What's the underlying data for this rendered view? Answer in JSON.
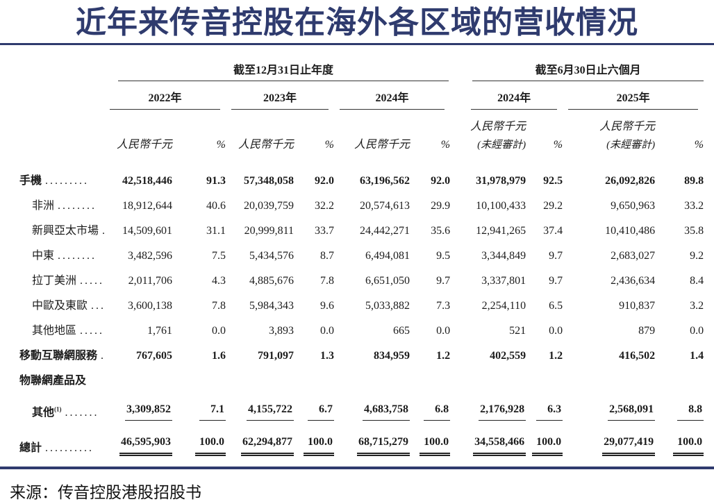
{
  "title": "近年来传音控股在海外各区域的营收情况",
  "source": "来源：传音控股港股招股书",
  "colors": {
    "accent_navy": "#2f3b6e",
    "table_rule": "#333333",
    "text": "#1c1c1c"
  },
  "table": {
    "group_headers": [
      {
        "label": "截至12月31日止年度"
      },
      {
        "label": "截至6月30日止六個月"
      }
    ],
    "year_headers": [
      "2022年",
      "2023年",
      "2024年",
      "2024年",
      "2025年"
    ],
    "unit_amount": "人民幣千元",
    "unit_pct": "%",
    "unaudited_note": "(未經審計)",
    "rows": [
      {
        "label": "手機",
        "sup": "",
        "dots": ".........",
        "indent": 0,
        "bold": true,
        "underline": "none",
        "values": [
          "42,518,446",
          "91.3",
          "57,348,058",
          "92.0",
          "63,196,562",
          "92.0",
          "31,978,979",
          "92.5",
          "26,092,826",
          "89.8"
        ]
      },
      {
        "label": "非洲",
        "sup": "",
        "dots": "........",
        "indent": 1,
        "bold": false,
        "underline": "none",
        "values": [
          "18,912,644",
          "40.6",
          "20,039,759",
          "32.2",
          "20,574,613",
          "29.9",
          "10,100,433",
          "29.2",
          "9,650,963",
          "33.2"
        ]
      },
      {
        "label": "新興亞太市場",
        "sup": "",
        "dots": ".",
        "indent": 1,
        "bold": false,
        "underline": "none",
        "values": [
          "14,509,601",
          "31.1",
          "20,999,811",
          "33.7",
          "24,442,271",
          "35.6",
          "12,941,265",
          "37.4",
          "10,410,486",
          "35.8"
        ]
      },
      {
        "label": "中東",
        "sup": "",
        "dots": "........",
        "indent": 1,
        "bold": false,
        "underline": "none",
        "values": [
          "3,482,596",
          "7.5",
          "5,434,576",
          "8.7",
          "6,494,081",
          "9.5",
          "3,344,849",
          "9.7",
          "2,683,027",
          "9.2"
        ]
      },
      {
        "label": "拉丁美洲",
        "sup": "",
        "dots": ".....",
        "indent": 1,
        "bold": false,
        "underline": "none",
        "values": [
          "2,011,706",
          "4.3",
          "4,885,676",
          "7.8",
          "6,651,050",
          "9.7",
          "3,337,801",
          "9.7",
          "2,436,634",
          "8.4"
        ]
      },
      {
        "label": "中歐及東歐",
        "sup": "",
        "dots": "...",
        "indent": 1,
        "bold": false,
        "underline": "none",
        "values": [
          "3,600,138",
          "7.8",
          "5,984,343",
          "9.6",
          "5,033,882",
          "7.3",
          "2,254,110",
          "6.5",
          "910,837",
          "3.2"
        ]
      },
      {
        "label": "其他地區",
        "sup": "",
        "dots": ".....",
        "indent": 1,
        "bold": false,
        "underline": "none",
        "values": [
          "1,761",
          "0.0",
          "3,893",
          "0.0",
          "665",
          "0.0",
          "521",
          "0.0",
          "879",
          "0.0"
        ]
      },
      {
        "label": "移動互聯網服務",
        "sup": "",
        "dots": ".",
        "indent": 0,
        "bold": true,
        "underline": "none",
        "values": [
          "767,605",
          "1.6",
          "791,097",
          "1.3",
          "834,959",
          "1.2",
          "402,559",
          "1.2",
          "416,502",
          "1.4"
        ]
      },
      {
        "label": "物聯網產品及",
        "sup": "",
        "dots": "",
        "indent": 0,
        "bold": true,
        "underline": "none",
        "values": [
          "",
          "",
          "",
          "",
          "",
          "",
          "",
          "",
          "",
          ""
        ]
      },
      {
        "label": "其他",
        "sup": "(1)",
        "dots": ".......",
        "indent": 1,
        "bold": true,
        "underline": "single",
        "values": [
          "3,309,852",
          "7.1",
          "4,155,722",
          "6.7",
          "4,683,758",
          "6.8",
          "2,176,928",
          "6.3",
          "2,568,091",
          "8.8"
        ]
      },
      {
        "label": "總計",
        "sup": "",
        "dots": "..........",
        "indent": 0,
        "bold": true,
        "underline": "double",
        "values": [
          "46,595,903",
          "100.0",
          "62,294,877",
          "100.0",
          "68,715,279",
          "100.0",
          "34,558,466",
          "100.0",
          "29,077,419",
          "100.0"
        ]
      }
    ]
  }
}
